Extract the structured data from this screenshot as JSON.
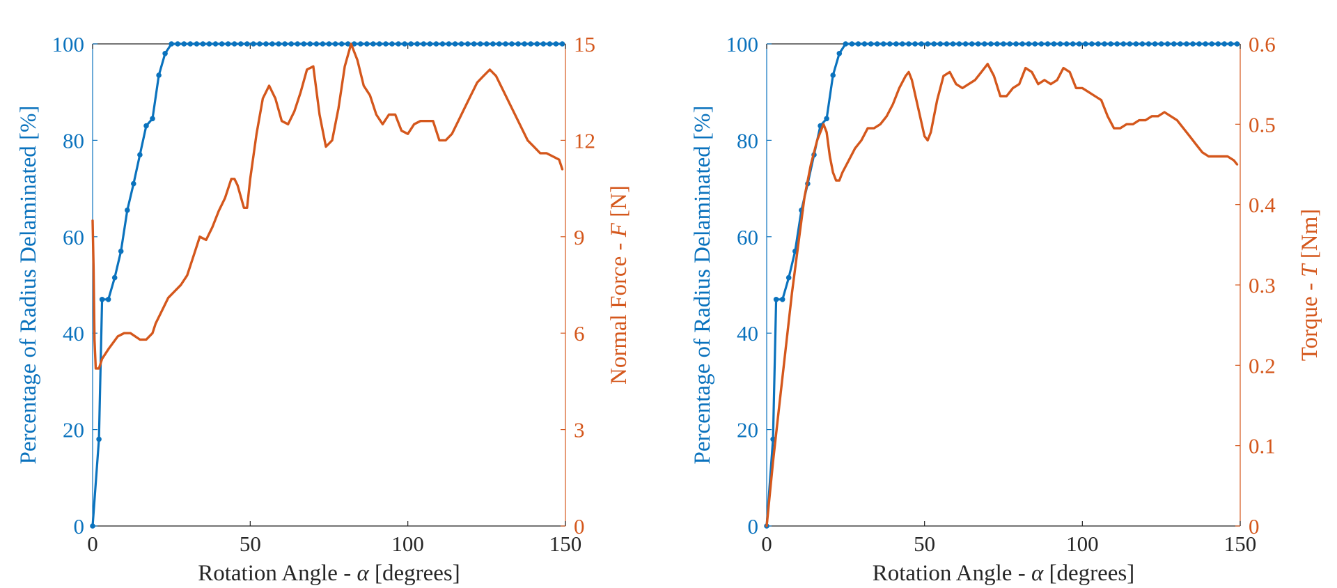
{
  "colors": {
    "left": "#0a72bd",
    "right": "#d4571c",
    "axis": "#222222",
    "xtext": "#262626"
  },
  "chart_data": [
    {
      "type": "line",
      "xlabel_pre": "Rotation Angle - ",
      "xlabel_sym": "α",
      "xlabel_post": " [degrees]",
      "ylabel_left": "Percentage of Radius Delaminated [%]",
      "ylabel_right_pre": "Normal Force - ",
      "ylabel_right_sym": "F",
      "ylabel_right_post": " [N]",
      "xlim": [
        0,
        150
      ],
      "ylim_left": [
        0,
        100
      ],
      "ylim_right": [
        0,
        15
      ],
      "xticks": [
        0,
        50,
        100,
        150
      ],
      "xtick_labels": [
        "0",
        "50",
        "100",
        "150"
      ],
      "yticks_left": [
        0,
        20,
        40,
        60,
        80,
        100
      ],
      "ytick_labels_left": [
        "0",
        "20",
        "40",
        "60",
        "80",
        "100"
      ],
      "yticks_right": [
        0,
        3,
        6,
        9,
        12,
        15
      ],
      "ytick_labels_right": [
        "0",
        "3",
        "6",
        "9",
        "12",
        "15"
      ],
      "grid": false,
      "series": [
        {
          "name": "Percentage of Radius Delaminated",
          "axis": "left",
          "marker": "dot",
          "x": [
            0,
            2,
            3,
            5,
            7,
            9,
            11,
            13,
            15,
            17,
            19,
            21,
            23,
            25,
            27,
            29,
            31,
            33,
            35,
            37,
            39,
            41,
            43,
            45,
            47,
            49,
            51,
            53,
            55,
            57,
            59,
            61,
            63,
            65,
            67,
            69,
            71,
            73,
            75,
            77,
            79,
            81,
            83,
            85,
            87,
            89,
            91,
            93,
            95,
            97,
            99,
            101,
            103,
            105,
            107,
            109,
            111,
            113,
            115,
            117,
            119,
            121,
            123,
            125,
            127,
            129,
            131,
            133,
            135,
            137,
            139,
            141,
            143,
            145,
            147,
            149
          ],
          "y": [
            0,
            18,
            47,
            47,
            51.5,
            57,
            65.5,
            71,
            77,
            83,
            84.5,
            93.5,
            98,
            100,
            100,
            100,
            100,
            100,
            100,
            100,
            100,
            100,
            100,
            100,
            100,
            100,
            100,
            100,
            100,
            100,
            100,
            100,
            100,
            100,
            100,
            100,
            100,
            100,
            100,
            100,
            100,
            100,
            100,
            100,
            100,
            100,
            100,
            100,
            100,
            100,
            100,
            100,
            100,
            100,
            100,
            100,
            100,
            100,
            100,
            100,
            100,
            100,
            100,
            100,
            100,
            100,
            100,
            100,
            100,
            100,
            100,
            100,
            100,
            100,
            100,
            100
          ]
        },
        {
          "name": "Normal Force",
          "axis": "right",
          "marker": "none",
          "x": [
            0,
            0.3,
            0.6,
            1,
            2,
            3,
            5,
            8,
            10,
            12,
            15,
            17,
            19,
            20,
            22,
            24,
            26,
            28,
            30,
            32,
            34,
            36,
            38,
            40,
            42,
            44,
            45,
            46,
            48,
            49,
            50,
            52,
            54,
            56,
            58,
            60,
            62,
            64,
            66,
            68,
            70,
            72,
            74,
            76,
            78,
            80,
            82,
            84,
            86,
            88,
            90,
            92,
            94,
            96,
            98,
            100,
            102,
            104,
            106,
            108,
            110,
            112,
            114,
            116,
            118,
            120,
            122,
            124,
            126,
            128,
            130,
            132,
            134,
            136,
            138,
            140,
            142,
            144,
            146,
            148,
            149
          ],
          "y": [
            9.5,
            8.0,
            5.8,
            4.9,
            4.9,
            5.2,
            5.5,
            5.9,
            6.0,
            6.0,
            5.8,
            5.8,
            6.0,
            6.3,
            6.7,
            7.1,
            7.3,
            7.5,
            7.8,
            8.4,
            9.0,
            8.9,
            9.3,
            9.8,
            10.2,
            10.8,
            10.8,
            10.6,
            9.9,
            9.9,
            10.8,
            12.2,
            13.3,
            13.7,
            13.3,
            12.6,
            12.5,
            12.9,
            13.5,
            14.2,
            14.3,
            12.8,
            11.8,
            12.0,
            13.0,
            14.3,
            15.0,
            14.5,
            13.7,
            13.4,
            12.8,
            12.5,
            12.8,
            12.8,
            12.3,
            12.2,
            12.5,
            12.6,
            12.6,
            12.6,
            12.0,
            12.0,
            12.2,
            12.6,
            13.0,
            13.4,
            13.8,
            14.0,
            14.2,
            14.0,
            13.6,
            13.2,
            12.8,
            12.4,
            12.0,
            11.8,
            11.6,
            11.6,
            11.5,
            11.4,
            11.1
          ]
        }
      ]
    },
    {
      "type": "line",
      "xlabel_pre": "Rotation Angle - ",
      "xlabel_sym": "α",
      "xlabel_post": " [degrees]",
      "ylabel_left": "Percentage of Radius Delaminated [%]",
      "ylabel_right_pre": "Torque - ",
      "ylabel_right_sym": "T",
      "ylabel_right_post": " [Nm]",
      "xlim": [
        0,
        150
      ],
      "ylim_left": [
        0,
        100
      ],
      "ylim_right": [
        0,
        0.6
      ],
      "xticks": [
        0,
        50,
        100,
        150
      ],
      "xtick_labels": [
        "0",
        "50",
        "100",
        "150"
      ],
      "yticks_left": [
        0,
        20,
        40,
        60,
        80,
        100
      ],
      "ytick_labels_left": [
        "0",
        "20",
        "40",
        "60",
        "80",
        "100"
      ],
      "yticks_right": [
        0,
        0.1,
        0.2,
        0.3,
        0.4,
        0.5,
        0.6
      ],
      "ytick_labels_right": [
        "0",
        "0.1",
        "0.2",
        "0.3",
        "0.4",
        "0.5",
        "0.6"
      ],
      "grid": false,
      "series": [
        {
          "name": "Percentage of Radius Delaminated",
          "axis": "left",
          "marker": "dot",
          "x": [
            0,
            2,
            3,
            5,
            7,
            9,
            11,
            13,
            15,
            17,
            19,
            21,
            23,
            25,
            27,
            29,
            31,
            33,
            35,
            37,
            39,
            41,
            43,
            45,
            47,
            49,
            51,
            53,
            55,
            57,
            59,
            61,
            63,
            65,
            67,
            69,
            71,
            73,
            75,
            77,
            79,
            81,
            83,
            85,
            87,
            89,
            91,
            93,
            95,
            97,
            99,
            101,
            103,
            105,
            107,
            109,
            111,
            113,
            115,
            117,
            119,
            121,
            123,
            125,
            127,
            129,
            131,
            133,
            135,
            137,
            139,
            141,
            143,
            145,
            147,
            149
          ],
          "y": [
            0,
            18,
            47,
            47,
            51.5,
            57,
            65.5,
            71,
            77,
            83,
            84.5,
            93.5,
            98,
            100,
            100,
            100,
            100,
            100,
            100,
            100,
            100,
            100,
            100,
            100,
            100,
            100,
            100,
            100,
            100,
            100,
            100,
            100,
            100,
            100,
            100,
            100,
            100,
            100,
            100,
            100,
            100,
            100,
            100,
            100,
            100,
            100,
            100,
            100,
            100,
            100,
            100,
            100,
            100,
            100,
            100,
            100,
            100,
            100,
            100,
            100,
            100,
            100,
            100,
            100,
            100,
            100,
            100,
            100,
            100,
            100,
            100,
            100,
            100,
            100,
            100,
            100
          ]
        },
        {
          "name": "Torque",
          "axis": "right",
          "marker": "none",
          "x": [
            0,
            2,
            4,
            6,
            8,
            10,
            12,
            14,
            16,
            18,
            19,
            20,
            21,
            22,
            23,
            24,
            26,
            28,
            30,
            32,
            34,
            36,
            38,
            40,
            42,
            44,
            45,
            46,
            48,
            50,
            51,
            52,
            54,
            56,
            58,
            60,
            62,
            64,
            66,
            68,
            70,
            72,
            74,
            76,
            78,
            80,
            82,
            84,
            86,
            88,
            90,
            92,
            94,
            96,
            98,
            100,
            102,
            104,
            106,
            108,
            110,
            112,
            114,
            116,
            118,
            120,
            122,
            124,
            126,
            128,
            130,
            132,
            134,
            136,
            138,
            140,
            142,
            144,
            146,
            148,
            149
          ],
          "y": [
            0,
            0.08,
            0.15,
            0.22,
            0.29,
            0.35,
            0.41,
            0.45,
            0.48,
            0.5,
            0.49,
            0.46,
            0.44,
            0.43,
            0.43,
            0.44,
            0.455,
            0.47,
            0.48,
            0.495,
            0.495,
            0.5,
            0.51,
            0.525,
            0.545,
            0.56,
            0.565,
            0.555,
            0.52,
            0.485,
            0.48,
            0.49,
            0.53,
            0.56,
            0.565,
            0.55,
            0.545,
            0.55,
            0.555,
            0.565,
            0.575,
            0.56,
            0.535,
            0.535,
            0.545,
            0.55,
            0.57,
            0.565,
            0.55,
            0.555,
            0.55,
            0.555,
            0.57,
            0.565,
            0.545,
            0.545,
            0.54,
            0.535,
            0.53,
            0.51,
            0.495,
            0.495,
            0.5,
            0.5,
            0.505,
            0.505,
            0.51,
            0.51,
            0.515,
            0.51,
            0.505,
            0.495,
            0.485,
            0.475,
            0.465,
            0.46,
            0.46,
            0.46,
            0.46,
            0.455,
            0.45
          ]
        }
      ]
    }
  ]
}
